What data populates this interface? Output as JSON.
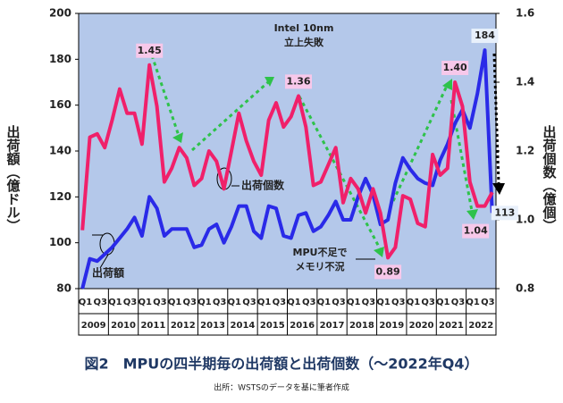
{
  "chart_data": {
    "type": "line",
    "title": "図2　MPUの四半期毎の出荷額と出荷個数（～2022年Q4）",
    "source": "出所：WSTSのデータを基に筆者作成",
    "y_label": "出荷額（億ドル）",
    "y2_label": "出荷個数（億個）",
    "categories": [
      "Q1",
      null,
      "Q3",
      null,
      "Q1",
      null,
      "Q3",
      null,
      "Q1",
      null,
      "Q3",
      null,
      "Q1",
      null,
      "Q3",
      null,
      "Q1",
      null,
      "Q3",
      null,
      "Q1",
      null,
      "Q3",
      null,
      "Q1",
      null,
      "Q3",
      null,
      "Q1",
      null,
      "Q3",
      null,
      "Q1",
      null,
      "Q3",
      null,
      "Q1",
      null,
      "Q3",
      null,
      "Q1",
      null,
      "Q3",
      null,
      "Q1",
      null,
      "Q3",
      null,
      "Q1",
      null,
      "Q3",
      null,
      "Q1",
      null,
      "Q3",
      null
    ],
    "years": [
      "2009",
      "2010",
      "2011",
      "2012",
      "2013",
      "2014",
      "2015",
      "2016",
      "2017",
      "2018",
      "2019",
      "2020",
      "2021",
      "2022"
    ],
    "ylim": [
      80,
      200
    ],
    "yticks": [
      80,
      100,
      120,
      140,
      160,
      180,
      200
    ],
    "y2lim": [
      0.8,
      1.6
    ],
    "y2ticks": [
      0.8,
      {
        "value": 1,
        "label": "1.0"
      },
      1.2,
      1.4,
      1.6
    ],
    "series": [
      {
        "name": "出荷額",
        "color": "#2a2ae8",
        "values": [
          80,
          93,
          92,
          95,
          98,
          102,
          106,
          111,
          103,
          120,
          115,
          103,
          106,
          106,
          106,
          98,
          99,
          106,
          108,
          100,
          107,
          116,
          116,
          105,
          102,
          116,
          115,
          103,
          102,
          112,
          113,
          105,
          107,
          112,
          118,
          110,
          110,
          120,
          128,
          121,
          108,
          110,
          126,
          137,
          132,
          128,
          126,
          125,
          136,
          143,
          152,
          158,
          150,
          165,
          184,
          113
        ],
        "value_labels": [
          null,
          null,
          null,
          null,
          null,
          null,
          null,
          null,
          null,
          null,
          null,
          null,
          null,
          null,
          null,
          null,
          null,
          null,
          null,
          null,
          null,
          null,
          null,
          null,
          null,
          null,
          null,
          null,
          null,
          null,
          null,
          null,
          null,
          null,
          null,
          null,
          null,
          null,
          null,
          null,
          null,
          null,
          null,
          null,
          null,
          null,
          null,
          null,
          null,
          null,
          null,
          null,
          null,
          null,
          "184",
          "113"
        ]
      },
      {
        "name": "出荷個数",
        "color": "#f0206a",
        "axis": "y2",
        "values": [
          0.97,
          1.24,
          1.25,
          1.21,
          1.29,
          1.38,
          1.31,
          1.31,
          1.22,
          1.45,
          1.33,
          1.11,
          1.15,
          1.21,
          1.18,
          1.1,
          1.12,
          1.2,
          1.17,
          1.09,
          1.2,
          1.31,
          1.23,
          1.17,
          1.13,
          1.29,
          1.34,
          1.27,
          1.3,
          1.36,
          1.27,
          1.1,
          1.11,
          1.16,
          1.21,
          1.05,
          1.12,
          1.09,
          1.02,
          1.09,
          1.02,
          0.89,
          0.92,
          1.07,
          1.06,
          0.99,
          0.98,
          1.19,
          1.13,
          1.15,
          1.4,
          1.33,
          1.11,
          1.04,
          1.04,
          1.08
        ],
        "value_labels": [
          null,
          null,
          null,
          null,
          null,
          null,
          null,
          null,
          null,
          "1.45",
          null,
          null,
          null,
          null,
          null,
          null,
          null,
          null,
          null,
          null,
          null,
          null,
          null,
          null,
          null,
          null,
          null,
          null,
          null,
          "1.36",
          null,
          null,
          null,
          null,
          null,
          null,
          null,
          null,
          null,
          null,
          null,
          "0.89",
          null,
          null,
          null,
          null,
          null,
          null,
          null,
          null,
          "1.40",
          null,
          null,
          "1.04",
          null,
          null
        ]
      }
    ],
    "annotations": [
      [
        "Intel 10nm",
        "立上失敗"
      ],
      [
        "MPU不足で",
        "メモリ不況"
      ]
    ]
  }
}
